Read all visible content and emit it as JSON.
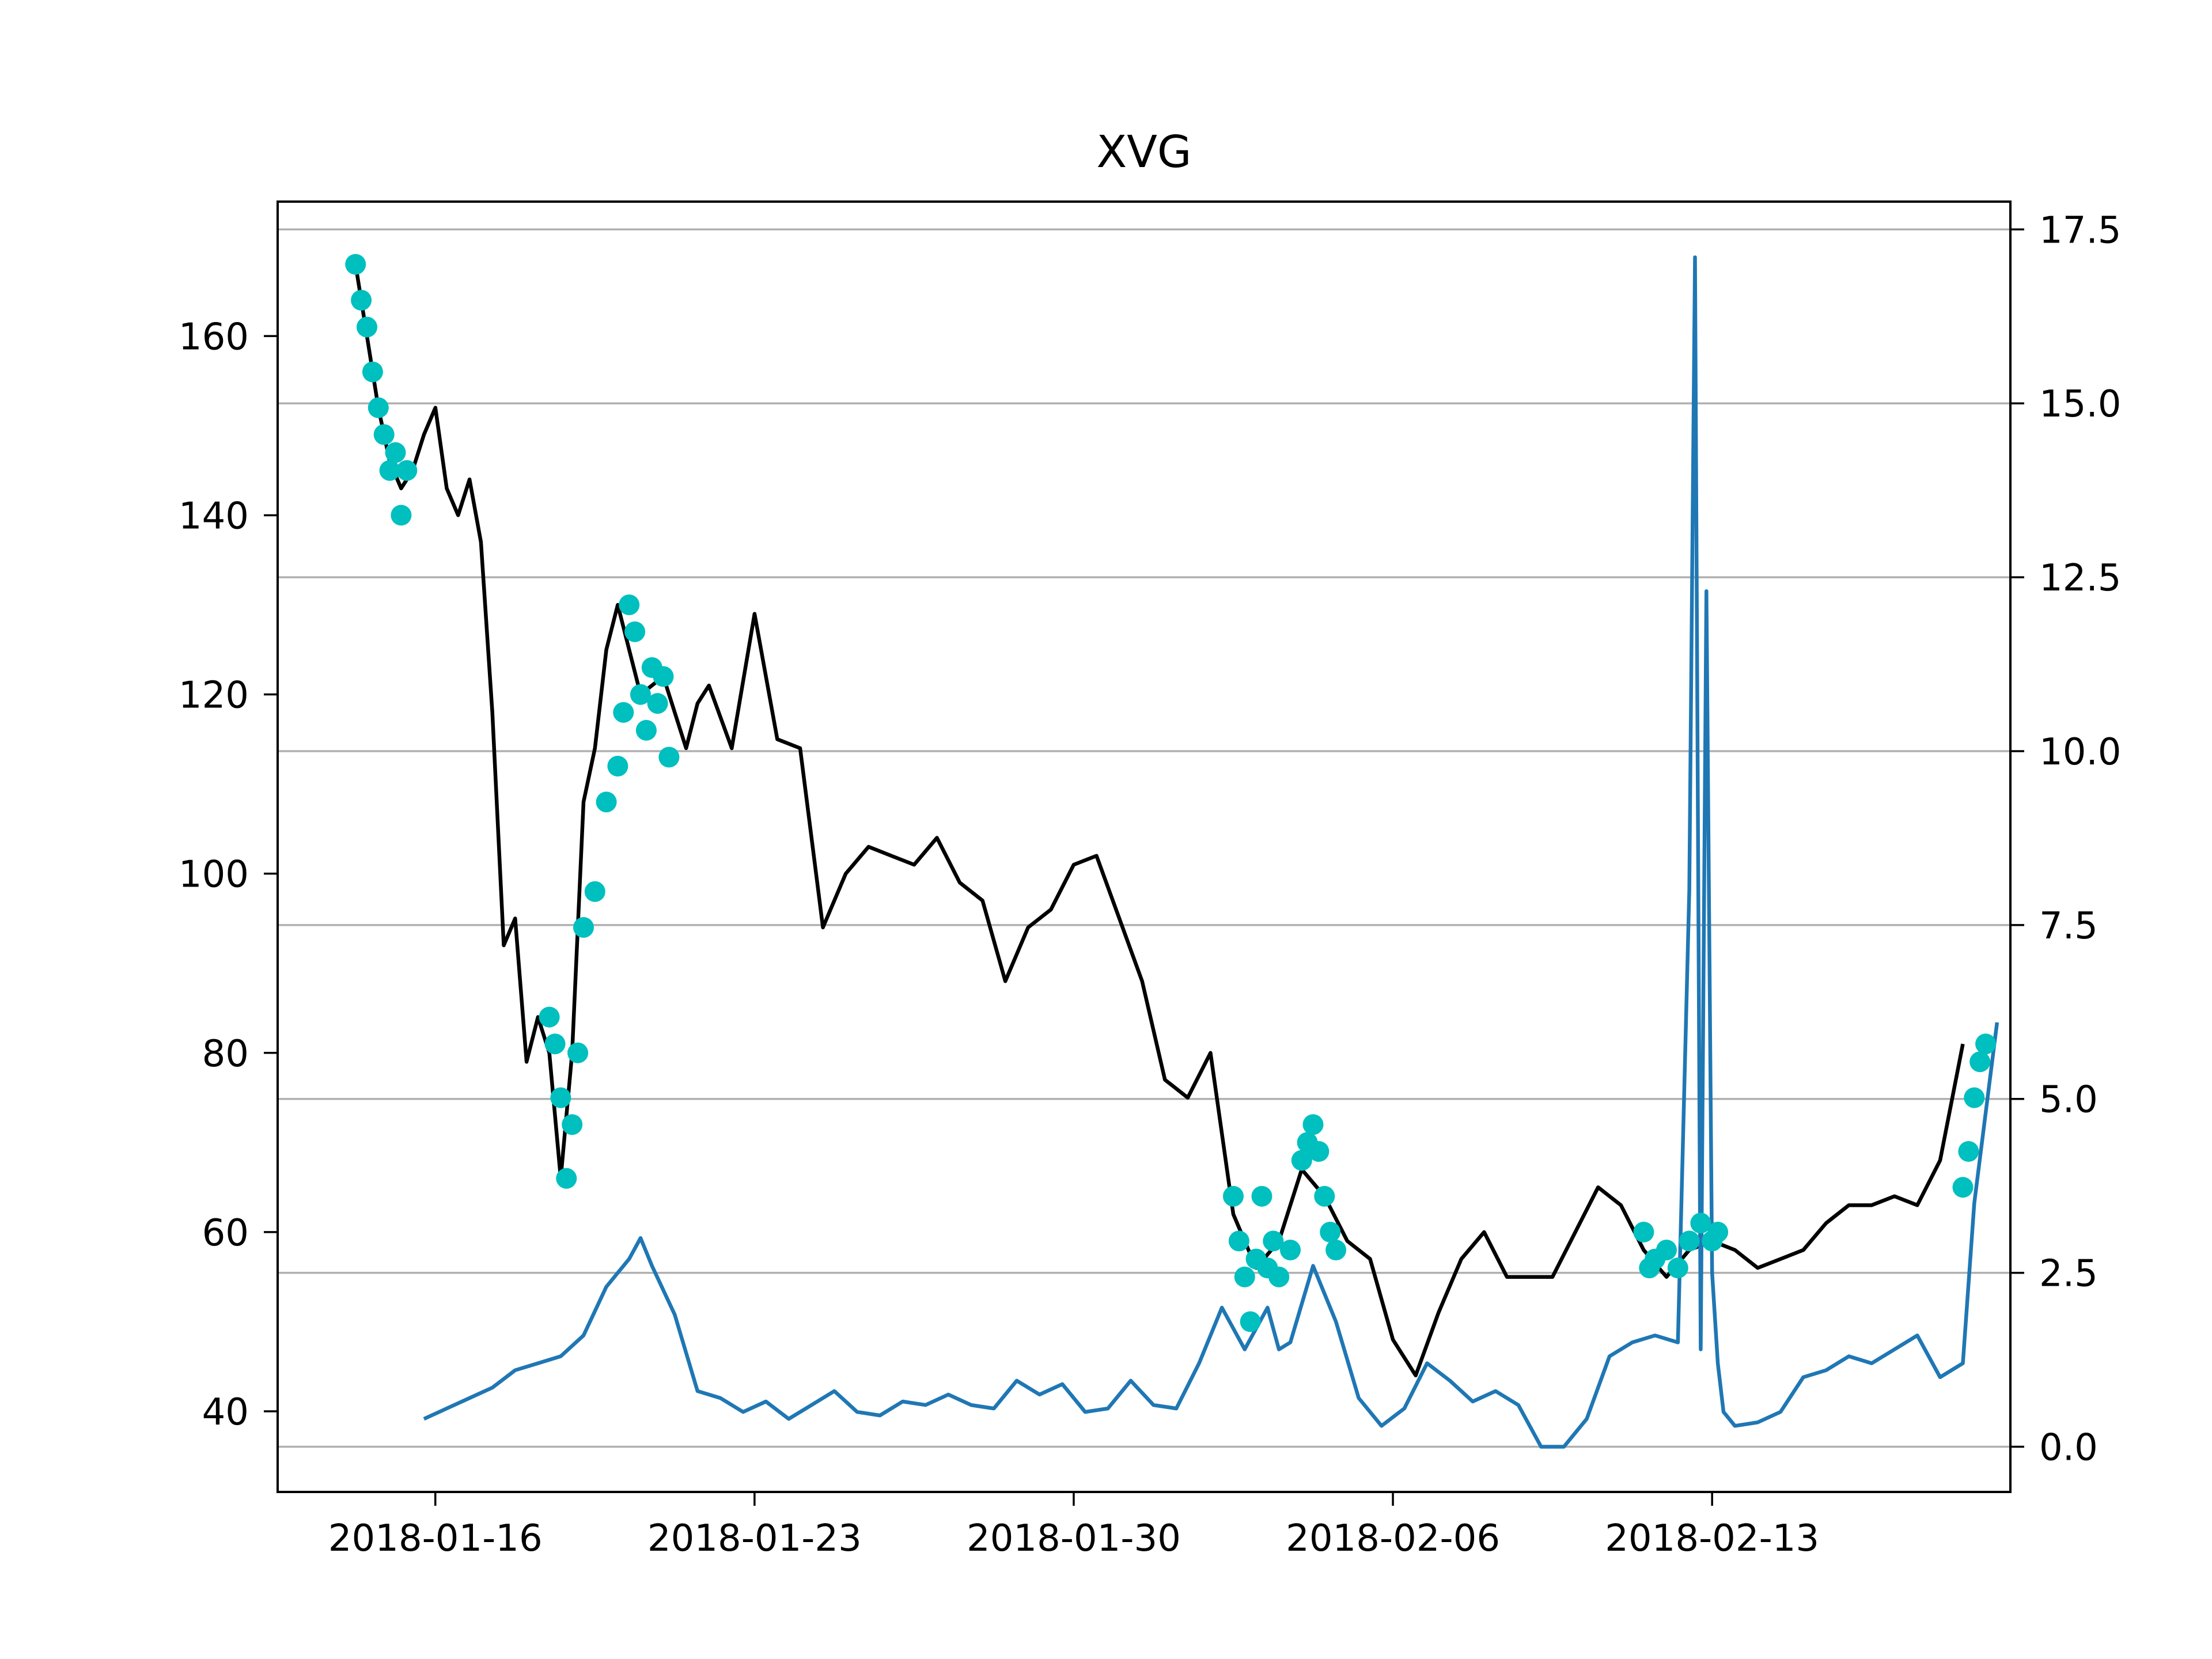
{
  "chart_data": {
    "type": "line",
    "title": "XVG",
    "xlabel": "",
    "ylabel": "",
    "y2label": "",
    "x_ticks": [
      "2018-01-16",
      "2018-01-23",
      "2018-01-30",
      "2018-02-06",
      "2018-02-13"
    ],
    "xlim": [
      "2018-01-12 13:00",
      "2018-02-19 13:00"
    ],
    "ylim": [
      31,
      175
    ],
    "y_ticks": [
      40,
      60,
      80,
      100,
      120,
      140,
      160
    ],
    "y2lim": [
      -0.65,
      17.9
    ],
    "y2_ticks": [
      "0.0",
      "2.5",
      "5.0",
      "7.5",
      "10.0",
      "12.5",
      "15.0",
      "17.5"
    ],
    "grid": "horizontal, right axis ticks",
    "colors": {
      "price": "#000000",
      "markers": "#00bfbf",
      "secondary": "#1f77b4",
      "grid": "#b0b0b0"
    },
    "series": [
      {
        "axis": "left",
        "style": "line",
        "x": [
          "2018-01-14 06:00",
          "2018-01-14 12:00",
          "2018-01-14 18:00",
          "2018-01-15 00:00",
          "2018-01-15 06:00",
          "2018-01-15 12:00",
          "2018-01-15 18:00",
          "2018-01-16 00:00",
          "2018-01-16 06:00",
          "2018-01-16 12:00",
          "2018-01-16 18:00",
          "2018-01-17 00:00",
          "2018-01-17 06:00",
          "2018-01-17 12:00",
          "2018-01-17 18:00",
          "2018-01-18 00:00",
          "2018-01-18 06:00",
          "2018-01-18 12:00",
          "2018-01-18 18:00",
          "2018-01-19 00:00",
          "2018-01-19 06:00",
          "2018-01-19 12:00",
          "2018-01-19 18:00",
          "2018-01-20 00:00",
          "2018-01-20 12:00",
          "2018-01-21 00:00",
          "2018-01-21 12:00",
          "2018-01-21 18:00",
          "2018-01-22 00:00",
          "2018-01-22 12:00",
          "2018-01-23 00:00",
          "2018-01-23 12:00",
          "2018-01-24 00:00",
          "2018-01-24 12:00",
          "2018-01-25 00:00",
          "2018-01-25 12:00",
          "2018-01-26 00:00",
          "2018-01-26 12:00",
          "2018-01-27 00:00",
          "2018-01-27 12:00",
          "2018-01-28 00:00",
          "2018-01-28 12:00",
          "2018-01-29 00:00",
          "2018-01-29 12:00",
          "2018-01-30 00:00",
          "2018-01-30 12:00",
          "2018-01-31 00:00",
          "2018-01-31 12:00",
          "2018-02-01 00:00",
          "2018-02-01 12:00",
          "2018-02-02 00:00",
          "2018-02-02 12:00",
          "2018-02-03 00:00",
          "2018-02-03 12:00",
          "2018-02-04 00:00",
          "2018-02-04 12:00",
          "2018-02-05 00:00",
          "2018-02-05 12:00",
          "2018-02-06 00:00",
          "2018-02-06 12:00",
          "2018-02-07 00:00",
          "2018-02-07 12:00",
          "2018-02-08 00:00",
          "2018-02-08 12:00",
          "2018-02-09 00:00",
          "2018-02-09 12:00",
          "2018-02-10 00:00",
          "2018-02-10 12:00",
          "2018-02-11 00:00",
          "2018-02-11 12:00",
          "2018-02-12 00:00",
          "2018-02-12 12:00",
          "2018-02-13 00:00",
          "2018-02-13 12:00",
          "2018-02-14 00:00",
          "2018-02-14 12:00",
          "2018-02-15 00:00",
          "2018-02-15 12:00",
          "2018-02-16 00:00",
          "2018-02-16 12:00",
          "2018-02-17 00:00",
          "2018-02-17 12:00",
          "2018-02-18 00:00",
          "2018-02-18 12:00"
        ],
        "y": [
          168,
          160,
          152,
          146,
          143,
          145,
          149,
          152,
          143,
          140,
          144,
          137,
          118,
          92,
          95,
          79,
          84,
          80,
          66,
          80,
          108,
          114,
          125,
          130,
          120,
          122,
          114,
          119,
          121,
          114,
          129,
          115,
          114,
          94,
          100,
          103,
          102,
          101,
          104,
          99,
          97,
          88,
          94,
          96,
          101,
          102,
          95,
          88,
          77,
          75,
          80,
          62,
          56,
          59,
          67,
          64,
          59,
          57,
          48,
          44,
          51,
          57,
          60,
          55,
          55,
          55,
          60,
          65,
          63,
          58,
          55,
          58,
          59,
          58,
          56,
          57,
          58,
          61,
          63,
          63,
          64,
          63,
          68,
          81
        ]
      },
      {
        "axis": "left",
        "style": "markers",
        "x": [
          "2018-01-14 06:00",
          "2018-01-14 09:00",
          "2018-01-14 12:00",
          "2018-01-14 15:00",
          "2018-01-14 18:00",
          "2018-01-14 21:00",
          "2018-01-15 00:00",
          "2018-01-15 03:00",
          "2018-01-15 06:00",
          "2018-01-15 09:00",
          "2018-01-18 12:00",
          "2018-01-18 15:00",
          "2018-01-18 18:00",
          "2018-01-18 21:00",
          "2018-01-19 00:00",
          "2018-01-19 03:00",
          "2018-01-19 06:00",
          "2018-01-19 12:00",
          "2018-01-19 18:00",
          "2018-01-20 00:00",
          "2018-01-20 03:00",
          "2018-01-20 06:00",
          "2018-01-20 09:00",
          "2018-01-20 12:00",
          "2018-01-20 15:00",
          "2018-01-20 18:00",
          "2018-01-20 21:00",
          "2018-01-21 00:00",
          "2018-01-21 03:00",
          "2018-02-02 12:00",
          "2018-02-02 15:00",
          "2018-02-02 18:00",
          "2018-02-02 21:00",
          "2018-02-03 00:00",
          "2018-02-03 03:00",
          "2018-02-03 06:00",
          "2018-02-03 09:00",
          "2018-02-03 12:00",
          "2018-02-03 18:00",
          "2018-02-04 00:00",
          "2018-02-04 03:00",
          "2018-02-04 06:00",
          "2018-02-04 09:00",
          "2018-02-04 12:00",
          "2018-02-04 15:00",
          "2018-02-04 18:00",
          "2018-02-11 12:00",
          "2018-02-11 15:00",
          "2018-02-11 18:00",
          "2018-02-12 00:00",
          "2018-02-12 06:00",
          "2018-02-12 12:00",
          "2018-02-12 18:00",
          "2018-02-13 00:00",
          "2018-02-13 03:00",
          "2018-02-18 12:00",
          "2018-02-18 15:00",
          "2018-02-18 18:00",
          "2018-02-18 21:00",
          "2018-02-19 00:00"
        ],
        "y": [
          168,
          164,
          161,
          156,
          152,
          149,
          145,
          147,
          140,
          145,
          84,
          81,
          75,
          66,
          72,
          80,
          94,
          98,
          108,
          112,
          118,
          130,
          127,
          120,
          116,
          123,
          119,
          122,
          113,
          64,
          59,
          55,
          50,
          57,
          64,
          56,
          59,
          55,
          58,
          68,
          70,
          72,
          69,
          64,
          60,
          58,
          60,
          56,
          57,
          58,
          56,
          59,
          61,
          59,
          60,
          65,
          69,
          75,
          79,
          81
        ]
      },
      {
        "axis": "right",
        "style": "line",
        "x": [
          "2018-01-15 18:00",
          "2018-01-16 06:00",
          "2018-01-16 18:00",
          "2018-01-17 06:00",
          "2018-01-17 18:00",
          "2018-01-18 06:00",
          "2018-01-18 18:00",
          "2018-01-19 06:00",
          "2018-01-19 18:00",
          "2018-01-20 06:00",
          "2018-01-20 12:00",
          "2018-01-20 18:00",
          "2018-01-21 06:00",
          "2018-01-21 18:00",
          "2018-01-22 06:00",
          "2018-01-22 18:00",
          "2018-01-23 06:00",
          "2018-01-23 18:00",
          "2018-01-24 06:00",
          "2018-01-24 18:00",
          "2018-01-25 06:00",
          "2018-01-25 18:00",
          "2018-01-26 06:00",
          "2018-01-26 18:00",
          "2018-01-27 06:00",
          "2018-01-27 18:00",
          "2018-01-28 06:00",
          "2018-01-28 18:00",
          "2018-01-29 06:00",
          "2018-01-29 18:00",
          "2018-01-30 06:00",
          "2018-01-30 18:00",
          "2018-01-31 06:00",
          "2018-01-31 18:00",
          "2018-02-01 06:00",
          "2018-02-01 18:00",
          "2018-02-02 06:00",
          "2018-02-02 18:00",
          "2018-02-03 06:00",
          "2018-02-03 12:00",
          "2018-02-03 18:00",
          "2018-02-04 06:00",
          "2018-02-04 18:00",
          "2018-02-05 06:00",
          "2018-02-05 18:00",
          "2018-02-06 06:00",
          "2018-02-06 18:00",
          "2018-02-07 06:00",
          "2018-02-07 18:00",
          "2018-02-08 06:00",
          "2018-02-08 18:00",
          "2018-02-09 06:00",
          "2018-02-09 18:00",
          "2018-02-10 06:00",
          "2018-02-10 18:00",
          "2018-02-11 06:00",
          "2018-02-11 18:00",
          "2018-02-12 06:00",
          "2018-02-12 12:00",
          "2018-02-12 15:00",
          "2018-02-12 18:00",
          "2018-02-12 21:00",
          "2018-02-13 00:00",
          "2018-02-13 03:00",
          "2018-02-13 06:00",
          "2018-02-13 12:00",
          "2018-02-14 00:00",
          "2018-02-14 12:00",
          "2018-02-15 00:00",
          "2018-02-15 12:00",
          "2018-02-16 00:00",
          "2018-02-16 12:00",
          "2018-02-17 00:00",
          "2018-02-17 12:00",
          "2018-02-18 00:00",
          "2018-02-18 12:00",
          "2018-02-18 18:00",
          "2018-02-19 00:00",
          "2018-02-19 06:00"
        ],
        "y": [
          0.4,
          0.55,
          0.7,
          0.85,
          1.1,
          1.2,
          1.3,
          1.6,
          2.3,
          2.7,
          3.0,
          2.6,
          1.9,
          0.8,
          0.7,
          0.5,
          0.65,
          0.4,
          0.6,
          0.8,
          0.5,
          0.45,
          0.65,
          0.6,
          0.75,
          0.6,
          0.55,
          0.95,
          0.75,
          0.9,
          0.5,
          0.55,
          0.95,
          0.6,
          0.55,
          1.2,
          2.0,
          1.4,
          2.0,
          1.4,
          1.5,
          2.6,
          1.8,
          0.7,
          0.3,
          0.55,
          1.2,
          0.95,
          0.65,
          0.8,
          0.6,
          0.0,
          0.0,
          0.4,
          1.3,
          1.5,
          1.6,
          1.5,
          8.0,
          17.1,
          1.4,
          12.3,
          2.5,
          1.2,
          0.5,
          0.3,
          0.35,
          0.5,
          1.0,
          1.1,
          1.3,
          1.2,
          1.4,
          1.6,
          1.0,
          1.2,
          3.5,
          4.8,
          6.1
        ]
      }
    ]
  }
}
